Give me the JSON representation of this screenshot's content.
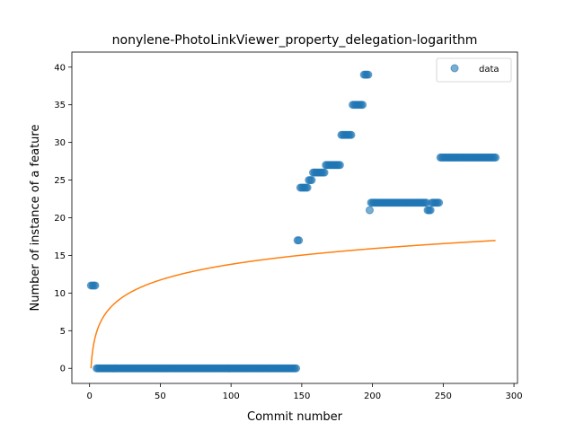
{
  "chart_data": {
    "type": "scatter",
    "title": "nonylene-PhotoLinkViewer_property_delegation-logarithm",
    "xlabel": "Commit number",
    "ylabel": "Number of instance of a feature",
    "xlim": [
      -12.5,
      302.5
    ],
    "ylim": [
      -2,
      42
    ],
    "xticks": [
      0,
      50,
      100,
      150,
      200,
      250,
      300
    ],
    "yticks": [
      0,
      5,
      10,
      15,
      20,
      25,
      30,
      35,
      40
    ],
    "grid": false,
    "legend": {
      "position": "top-right",
      "entries": [
        "data"
      ]
    },
    "colors": {
      "data": "#1f77b4",
      "fit": "#ff7f0e"
    },
    "series": [
      {
        "name": "data",
        "kind": "scatter",
        "runs": [
          {
            "x_start": 1,
            "x_end": 4,
            "y": 11
          },
          {
            "x_start": 5,
            "x_end": 146,
            "y": 0
          },
          {
            "x_start": 147,
            "x_end": 148,
            "y": 17
          },
          {
            "x_start": 149,
            "x_end": 154,
            "y": 24
          },
          {
            "x_start": 155,
            "x_end": 157,
            "y": 25
          },
          {
            "x_start": 158,
            "x_end": 166,
            "y": 26
          },
          {
            "x_start": 167,
            "x_end": 177,
            "y": 27
          },
          {
            "x_start": 178,
            "x_end": 185,
            "y": 31
          },
          {
            "x_start": 186,
            "x_end": 193,
            "y": 35
          },
          {
            "x_start": 194,
            "x_end": 197,
            "y": 39
          },
          {
            "x_start": 198,
            "x_end": 198,
            "y": 21
          },
          {
            "x_start": 199,
            "x_end": 238,
            "y": 22
          },
          {
            "x_start": 239,
            "x_end": 241,
            "y": 21
          },
          {
            "x_start": 242,
            "x_end": 247,
            "y": 22
          },
          {
            "x_start": 248,
            "x_end": 287,
            "y": 28
          }
        ]
      },
      {
        "kind": "line",
        "model": "logarithmic",
        "x_range": [
          1,
          287
        ],
        "coefficients": {
          "a": 3.0,
          "b": 0.0
        }
      }
    ]
  }
}
